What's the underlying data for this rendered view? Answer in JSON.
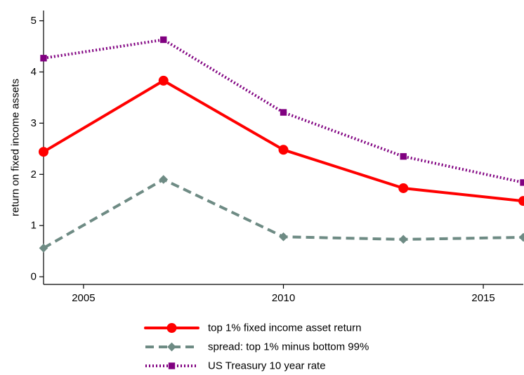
{
  "chart_data": {
    "type": "line",
    "title": "",
    "xlabel": "",
    "ylabel": "return on fixed income assets",
    "x": [
      2004,
      2007,
      2010,
      2013,
      2016
    ],
    "xticks": [
      "2005",
      "2010",
      "2015"
    ],
    "xtick_values": [
      2005,
      2010,
      2015
    ],
    "xlim": [
      2004,
      2016
    ],
    "yticks": [
      "0",
      "1",
      "2",
      "3",
      "4",
      "5"
    ],
    "ytick_values": [
      0,
      1,
      2,
      3,
      4,
      5
    ],
    "ylim": [
      -0.15,
      5.2
    ],
    "grid": false,
    "legend_position": "bottom",
    "series": [
      {
        "name": "top 1% fixed income asset return",
        "values": [
          2.44,
          3.83,
          2.48,
          1.73,
          1.48
        ],
        "color": "#ff0000",
        "line_style": "solid",
        "marker": "circle"
      },
      {
        "name": "spread: top 1% minus bottom 99%",
        "values": [
          0.56,
          1.9,
          0.78,
          0.73,
          0.77
        ],
        "color": "#6e8b84",
        "line_style": "dashed",
        "marker": "diamond"
      },
      {
        "name": "US Treasury 10 year rate",
        "values": [
          4.27,
          4.63,
          3.21,
          2.35,
          1.84
        ],
        "color": "#800080",
        "line_style": "dotted",
        "marker": "square"
      }
    ]
  }
}
